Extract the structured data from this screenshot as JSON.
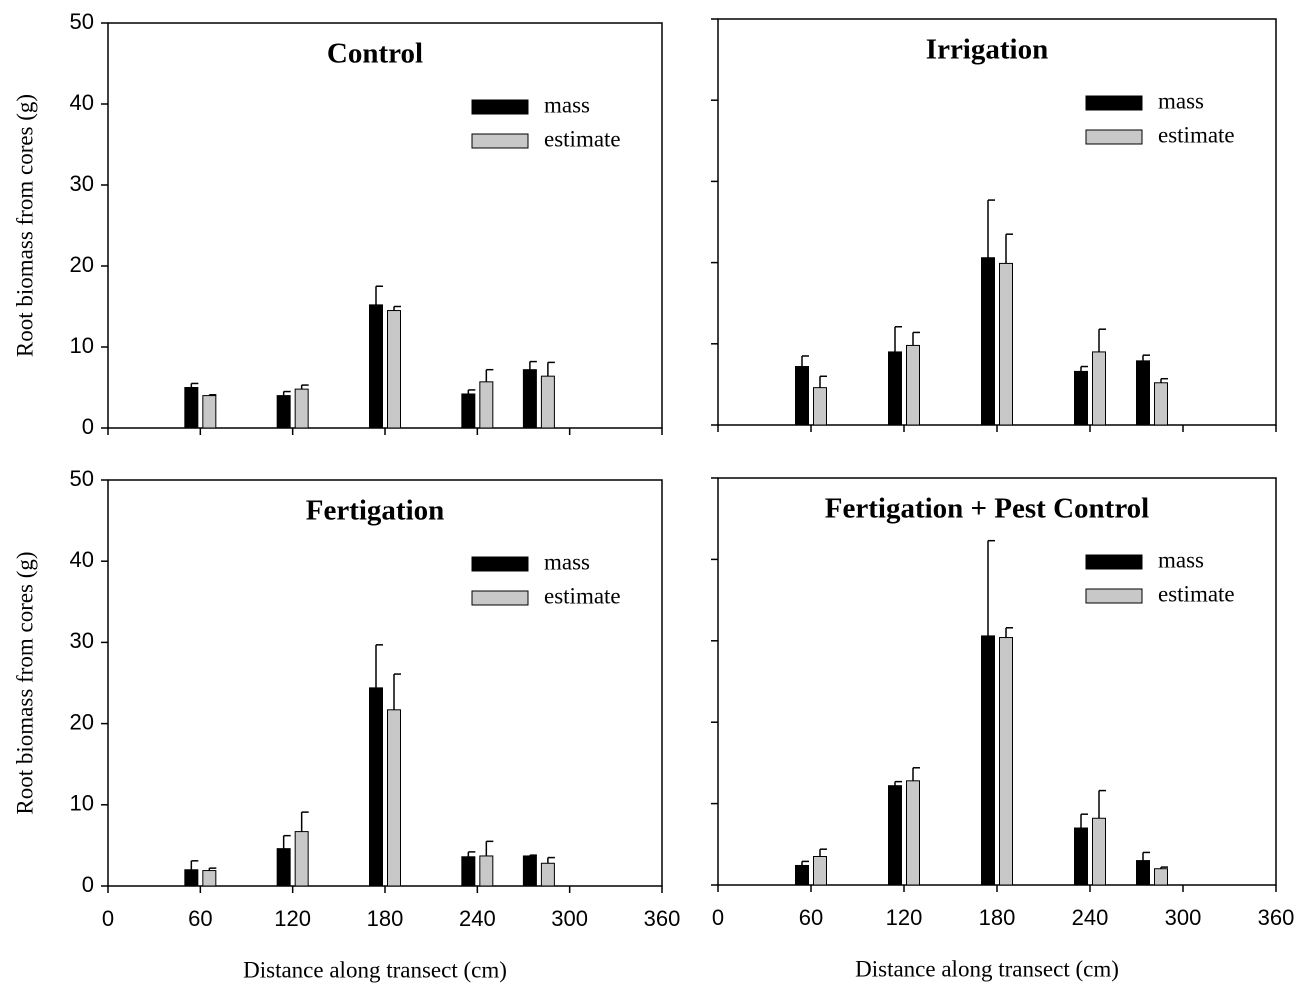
{
  "chart_data": [
    {
      "type": "bar",
      "title": "Control",
      "xlabel": "Distance along transect (cm)",
      "ylabel": "Root biomass from cores (g)",
      "x": [
        60,
        120,
        180,
        240,
        280
      ],
      "series": [
        {
          "name": "mass",
          "color": "#000000",
          "values": [
            5.0,
            4.0,
            15.2,
            4.2,
            7.2
          ],
          "errors": [
            0.5,
            0.5,
            2.3,
            0.5,
            1.0
          ]
        },
        {
          "name": "estimate",
          "color": "#c8c8c8",
          "values": [
            4.0,
            4.8,
            14.5,
            5.7,
            6.4
          ],
          "errors": [
            0.1,
            0.5,
            0.5,
            1.5,
            1.7
          ]
        }
      ],
      "xlim": [
        0,
        360
      ],
      "xticks": [
        0,
        60,
        120,
        180,
        240,
        300,
        360
      ],
      "ylim": [
        0,
        50
      ],
      "yticks": [
        0,
        10,
        20,
        30,
        40,
        50
      ],
      "legend": "upper right"
    },
    {
      "type": "bar",
      "title": "Irrigation",
      "xlabel": "Distance along transect (cm)",
      "ylabel": "Root biomass from cores (g)",
      "x": [
        60,
        120,
        180,
        240,
        280
      ],
      "series": [
        {
          "name": "mass",
          "color": "#000000",
          "values": [
            7.2,
            9.0,
            20.6,
            6.6,
            7.9
          ],
          "errors": [
            1.3,
            3.1,
            7.1,
            0.6,
            0.7
          ]
        },
        {
          "name": "estimate",
          "color": "#c8c8c8",
          "values": [
            4.6,
            9.8,
            19.9,
            9.0,
            5.2
          ],
          "errors": [
            1.4,
            1.6,
            3.6,
            2.8,
            0.5
          ]
        }
      ],
      "xlim": [
        0,
        360
      ],
      "xticks": [
        0,
        60,
        120,
        180,
        240,
        300,
        360
      ],
      "ylim": [
        0,
        50
      ],
      "yticks": [
        0,
        10,
        20,
        30,
        40,
        50
      ],
      "legend": "upper right"
    },
    {
      "type": "bar",
      "title": "Fertigation",
      "xlabel": "Distance along transect (cm)",
      "ylabel": "Root biomass from cores (g)",
      "x": [
        60,
        120,
        180,
        240,
        280
      ],
      "series": [
        {
          "name": "mass",
          "color": "#000000",
          "values": [
            2.0,
            4.6,
            24.4,
            3.6,
            3.7
          ],
          "errors": [
            1.1,
            1.6,
            5.3,
            0.6,
            0.1
          ]
        },
        {
          "name": "estimate",
          "color": "#c8c8c8",
          "values": [
            1.9,
            6.7,
            21.7,
            3.7,
            2.8
          ],
          "errors": [
            0.3,
            2.4,
            4.4,
            1.8,
            0.7
          ]
        }
      ],
      "xlim": [
        0,
        360
      ],
      "xticks": [
        0,
        60,
        120,
        180,
        240,
        300,
        360
      ],
      "ylim": [
        0,
        50
      ],
      "yticks": [
        0,
        10,
        20,
        30,
        40,
        50
      ],
      "legend": "upper right"
    },
    {
      "type": "bar",
      "title": "Fertigation + Pest Control",
      "xlabel": "Distance along transect (cm)",
      "ylabel": "Root biomass from cores (g)",
      "x": [
        60,
        120,
        180,
        240,
        280
      ],
      "series": [
        {
          "name": "mass",
          "color": "#000000",
          "values": [
            2.4,
            12.2,
            30.6,
            7.0,
            3.0
          ],
          "errors": [
            0.5,
            0.5,
            11.7,
            1.7,
            1.0
          ]
        },
        {
          "name": "estimate",
          "color": "#c8c8c8",
          "values": [
            3.5,
            12.8,
            30.4,
            8.2,
            2.0
          ],
          "errors": [
            0.9,
            1.6,
            1.2,
            3.4,
            0.2
          ]
        }
      ],
      "xlim": [
        0,
        360
      ],
      "xticks": [
        0,
        60,
        120,
        180,
        240,
        300,
        360
      ],
      "ylim": [
        0,
        50
      ],
      "yticks": [
        0,
        10,
        20,
        30,
        40,
        50
      ],
      "legend": "upper right"
    }
  ]
}
